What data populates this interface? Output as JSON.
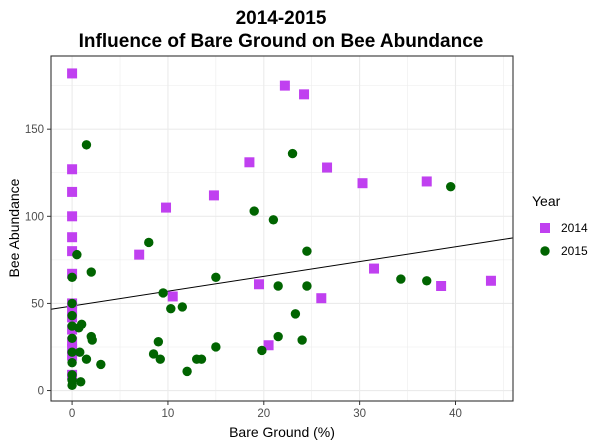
{
  "chart_data": {
    "type": "scatter",
    "title": "2014-2015",
    "subtitle": "Influence of Bare Ground on Bee Abundance",
    "xlabel": "Bare Ground (%)",
    "ylabel": "Bee Abundance",
    "xlim": [
      -2.2,
      46
    ],
    "ylim": [
      -6,
      192
    ],
    "x_ticks": [
      0,
      10,
      20,
      30,
      40
    ],
    "y_ticks": [
      0,
      50,
      100,
      150
    ],
    "grid": true,
    "legend": {
      "title": "Year",
      "placement": "right"
    },
    "series": [
      {
        "name": "2014",
        "color": "#c040f0",
        "marker": "square",
        "points": [
          [
            0,
            182
          ],
          [
            0,
            127
          ],
          [
            0,
            114
          ],
          [
            0,
            100
          ],
          [
            0,
            88
          ],
          [
            0,
            80
          ],
          [
            0,
            67
          ],
          [
            0,
            50
          ],
          [
            0,
            47
          ],
          [
            0,
            42
          ],
          [
            0,
            35
          ],
          [
            0,
            28
          ],
          [
            0,
            24
          ],
          [
            0,
            20
          ],
          [
            0,
            9
          ],
          [
            7,
            78
          ],
          [
            9.8,
            105
          ],
          [
            10.5,
            54
          ],
          [
            14.8,
            112
          ],
          [
            18.5,
            131
          ],
          [
            19.5,
            61
          ],
          [
            20.5,
            26
          ],
          [
            22.2,
            175
          ],
          [
            24.2,
            170
          ],
          [
            26,
            53
          ],
          [
            26.6,
            128
          ],
          [
            30.3,
            119
          ],
          [
            31.5,
            70
          ],
          [
            37,
            120
          ],
          [
            38.5,
            60
          ],
          [
            43.7,
            63
          ]
        ]
      },
      {
        "name": "2015",
        "color": "#006400",
        "marker": "circle",
        "points": [
          [
            0,
            65
          ],
          [
            0,
            50
          ],
          [
            0,
            43
          ],
          [
            0,
            37
          ],
          [
            0,
            30
          ],
          [
            0,
            22
          ],
          [
            0,
            16
          ],
          [
            0,
            9
          ],
          [
            0,
            6
          ],
          [
            0,
            3
          ],
          [
            0.5,
            78
          ],
          [
            0.7,
            36
          ],
          [
            0.8,
            22
          ],
          [
            0.9,
            5
          ],
          [
            1,
            38
          ],
          [
            1.5,
            141
          ],
          [
            1.5,
            18
          ],
          [
            2,
            68
          ],
          [
            2,
            31
          ],
          [
            2.1,
            29
          ],
          [
            3,
            15
          ],
          [
            8,
            85
          ],
          [
            8.5,
            21
          ],
          [
            9,
            28
          ],
          [
            9.2,
            18
          ],
          [
            9.5,
            56
          ],
          [
            10.3,
            47
          ],
          [
            11.5,
            48
          ],
          [
            12,
            11
          ],
          [
            13,
            18
          ],
          [
            13.5,
            18
          ],
          [
            15,
            65
          ],
          [
            15,
            25
          ],
          [
            19,
            103
          ],
          [
            19.8,
            23
          ],
          [
            21,
            98
          ],
          [
            21.5,
            31
          ],
          [
            21.5,
            60
          ],
          [
            23,
            136
          ],
          [
            23.3,
            44
          ],
          [
            24,
            29
          ],
          [
            24.5,
            80
          ],
          [
            24.5,
            60
          ],
          [
            34.3,
            64
          ],
          [
            37,
            63
          ],
          [
            39.5,
            117
          ]
        ]
      }
    ],
    "fit_line": {
      "intercept": 48.5,
      "slope": 0.85,
      "color": "#000000"
    }
  }
}
